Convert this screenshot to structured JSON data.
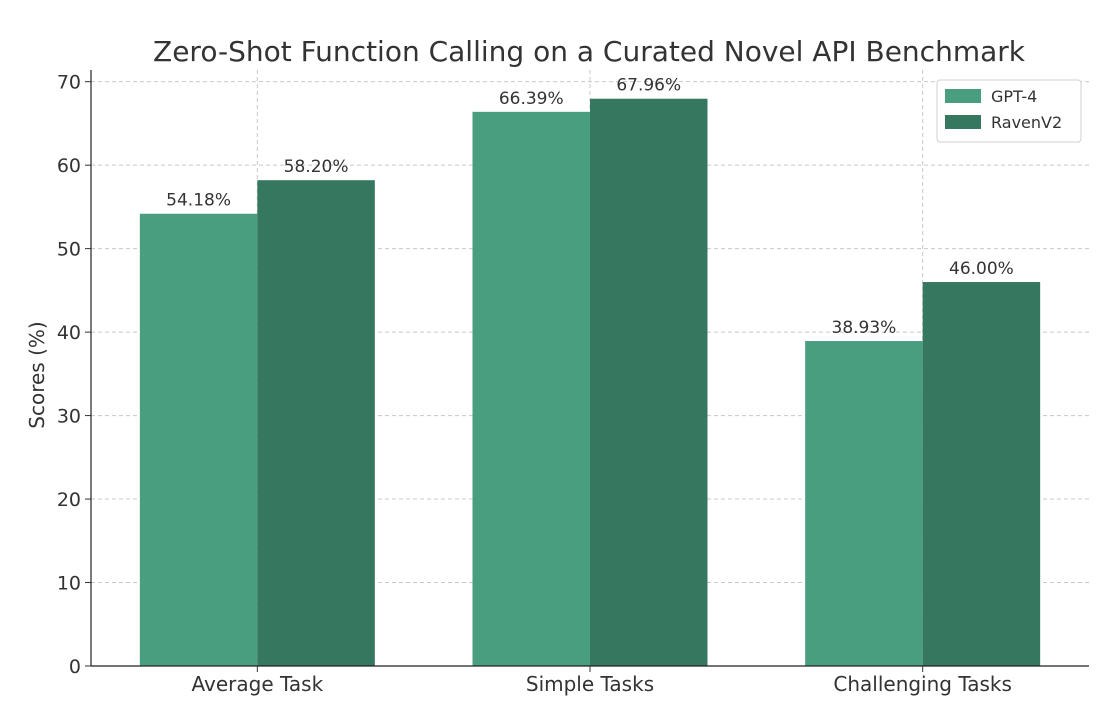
{
  "chart_data": {
    "type": "bar",
    "title": "Zero-Shot Function Calling on a Curated Novel API Benchmark",
    "xlabel": "",
    "ylabel": "Scores (%)",
    "categories": [
      "Average Task",
      "Simple Tasks",
      "Challenging Tasks"
    ],
    "series": [
      {
        "name": "GPT-4",
        "values": [
          54.18,
          66.39,
          38.93
        ],
        "labels": [
          "54.18%",
          "66.39%",
          "38.93%"
        ],
        "color": "#4a9e80"
      },
      {
        "name": "RavenV2",
        "values": [
          58.2,
          67.96,
          46.0
        ],
        "labels": [
          "58.20%",
          "67.96%",
          "46.00%"
        ],
        "color": "#367760"
      }
    ],
    "ylim": [
      0,
      71.4
    ],
    "yticks": [
      0,
      10,
      20,
      30,
      40,
      50,
      60,
      70
    ],
    "grid": true,
    "legend_position": "top-right"
  }
}
